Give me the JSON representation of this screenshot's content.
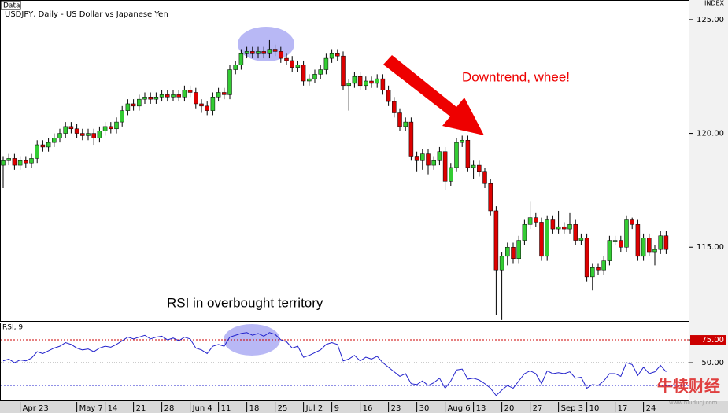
{
  "chart_data": [
    {
      "type": "candlestick",
      "title": "USDJPY, Daily - US Dollar vs Japanese Yen",
      "source": "Data",
      "axis_title": "INDEX",
      "up_color": "#33cc33",
      "down_color": "#dd0000",
      "annotations": [
        "Downtrend, whee!",
        "RSI in overbought territory"
      ],
      "ylim": [
        111.76,
        125.86
      ],
      "yticks": [
        {
          "value": 125,
          "label": "125.00"
        },
        {
          "value": 120,
          "label": "120.00"
        },
        {
          "value": 115,
          "label": "115.00"
        }
      ],
      "categories": [
        null,
        null,
        null,
        "Apr 23",
        null,
        null,
        null,
        null,
        null,
        null,
        null,
        null,
        null,
        "May 7",
        null,
        null,
        null,
        null,
        "14",
        null,
        null,
        null,
        null,
        "21",
        null,
        null,
        null,
        null,
        "28",
        null,
        null,
        null,
        null,
        "Jun 4",
        null,
        null,
        null,
        null,
        "11",
        null,
        null,
        null,
        null,
        "18",
        null,
        null,
        null,
        null,
        "25",
        null,
        null,
        null,
        null,
        "Jul 2",
        null,
        null,
        null,
        null,
        "9",
        null,
        null,
        null,
        null,
        "16",
        null,
        null,
        null,
        null,
        "23",
        null,
        null,
        null,
        null,
        "30",
        null,
        null,
        null,
        null,
        "Aug 6",
        null,
        null,
        null,
        null,
        "13",
        null,
        null,
        null,
        null,
        "20",
        null,
        null,
        null,
        null,
        "27",
        null,
        null,
        null,
        null,
        "Sep 3",
        null,
        null,
        null,
        null,
        "10",
        null,
        null,
        null,
        null,
        "17",
        null,
        null,
        null,
        null,
        "24",
        null,
        null,
        null,
        null
      ],
      "open": [
        118.6,
        118.8,
        118.9,
        118.6,
        118.8,
        118.7,
        118.9,
        119.5,
        119.4,
        119.6,
        119.8,
        120.0,
        120.3,
        120.2,
        120.0,
        119.9,
        120.0,
        119.8,
        120.1,
        120.3,
        120.2,
        120.5,
        121.0,
        121.3,
        121.2,
        121.5,
        121.6,
        121.5,
        121.6,
        121.7,
        121.6,
        121.7,
        121.6,
        121.9,
        121.8,
        121.3,
        121.2,
        121.0,
        121.6,
        121.8,
        121.7,
        122.8,
        123.0,
        123.5,
        123.6,
        123.5,
        123.6,
        123.5,
        123.7,
        123.6,
        123.3,
        123.2,
        122.9,
        123.0,
        122.3,
        122.4,
        122.6,
        122.8,
        123.3,
        123.5,
        123.4,
        122.1,
        122.2,
        122.5,
        122.1,
        122.3,
        122.2,
        122.4,
        121.9,
        121.4,
        120.9,
        120.3,
        120.5,
        119.0,
        118.8,
        119.1,
        118.6,
        118.8,
        119.2,
        117.9,
        118.5,
        119.6,
        119.7,
        118.5,
        118.6,
        118.3,
        117.8,
        116.6,
        114.0,
        114.6,
        115.0,
        114.5,
        115.3,
        116.0,
        116.3,
        116.1,
        114.6,
        116.2,
        115.8,
        115.9,
        115.8,
        116.0,
        115.3,
        115.4,
        113.7,
        114.1,
        114.0,
        114.4,
        115.3,
        115.3,
        115.0,
        116.2,
        116.0,
        114.6,
        115.4,
        114.8,
        114.9,
        115.5
      ],
      "high": [
        119.0,
        119.1,
        119.1,
        119.0,
        119.0,
        119.1,
        119.7,
        119.7,
        119.8,
        120.0,
        120.2,
        120.5,
        120.5,
        120.4,
        120.2,
        120.2,
        120.2,
        120.3,
        120.5,
        120.5,
        120.7,
        121.2,
        121.5,
        121.5,
        121.7,
        121.8,
        121.8,
        121.8,
        121.9,
        121.9,
        121.9,
        121.9,
        122.1,
        122.1,
        122.0,
        121.5,
        121.4,
        121.8,
        122.0,
        122.0,
        123.0,
        123.2,
        123.7,
        123.8,
        123.8,
        123.8,
        123.8,
        124.1,
        123.9,
        123.8,
        123.5,
        123.4,
        123.2,
        123.2,
        122.6,
        122.8,
        123.0,
        123.5,
        123.7,
        123.7,
        123.6,
        122.4,
        122.7,
        122.7,
        122.5,
        122.5,
        122.6,
        122.6,
        122.1,
        121.6,
        121.1,
        120.7,
        120.7,
        119.2,
        119.3,
        119.3,
        119.0,
        119.4,
        119.4,
        118.7,
        119.8,
        119.9,
        119.9,
        118.8,
        118.8,
        118.5,
        118.0,
        116.8,
        114.8,
        115.2,
        115.2,
        115.5,
        116.2,
        117.0,
        116.5,
        116.3,
        116.4,
        116.4,
        116.6,
        116.1,
        116.5,
        116.2,
        115.6,
        115.6,
        114.3,
        114.3,
        114.6,
        115.5,
        115.5,
        115.5,
        116.4,
        116.3,
        116.2,
        115.6,
        115.6,
        115.1,
        115.7,
        115.7
      ],
      "low": [
        117.6,
        118.6,
        118.4,
        118.4,
        118.5,
        118.5,
        118.7,
        119.2,
        119.2,
        119.4,
        119.6,
        119.8,
        120.0,
        119.8,
        119.7,
        119.7,
        119.5,
        119.6,
        119.9,
        120.0,
        120.0,
        120.3,
        120.8,
        121.0,
        121.0,
        121.3,
        121.3,
        121.3,
        121.4,
        121.4,
        121.4,
        121.4,
        121.4,
        121.6,
        121.1,
        120.9,
        120.8,
        120.8,
        121.4,
        121.5,
        121.5,
        122.6,
        122.8,
        123.3,
        123.3,
        123.3,
        123.3,
        123.3,
        123.4,
        123.1,
        123.0,
        122.7,
        122.7,
        122.1,
        122.1,
        122.2,
        122.4,
        122.6,
        123.1,
        123.2,
        121.9,
        121.0,
        122.0,
        121.9,
        121.9,
        122.0,
        122.0,
        121.7,
        121.2,
        120.7,
        120.1,
        120.1,
        118.8,
        118.3,
        118.4,
        118.2,
        118.4,
        118.6,
        117.5,
        117.7,
        118.3,
        119.4,
        118.3,
        118.0,
        118.1,
        117.6,
        116.4,
        112.0,
        111.8,
        114.2,
        114.3,
        114.3,
        115.1,
        115.8,
        115.9,
        114.4,
        114.4,
        115.6,
        115.6,
        115.6,
        115.6,
        115.1,
        115.1,
        113.5,
        113.1,
        113.8,
        113.8,
        114.2,
        115.1,
        114.8,
        114.8,
        115.8,
        114.4,
        114.4,
        114.6,
        114.2,
        114.7,
        114.7
      ],
      "close": [
        118.8,
        118.9,
        118.6,
        118.8,
        118.7,
        118.9,
        119.5,
        119.4,
        119.6,
        119.8,
        120.0,
        120.3,
        120.2,
        120.0,
        119.9,
        120.0,
        119.8,
        120.1,
        120.3,
        120.2,
        120.5,
        121.0,
        121.3,
        121.2,
        121.5,
        121.6,
        121.5,
        121.6,
        121.7,
        121.6,
        121.7,
        121.6,
        121.9,
        121.8,
        121.3,
        121.2,
        121.0,
        121.6,
        121.8,
        121.7,
        122.8,
        123.0,
        123.5,
        123.6,
        123.5,
        123.6,
        123.5,
        123.7,
        123.6,
        123.3,
        123.2,
        122.9,
        123.0,
        122.3,
        122.4,
        122.6,
        122.8,
        123.3,
        123.5,
        123.4,
        122.1,
        122.2,
        122.5,
        122.1,
        122.3,
        122.2,
        122.4,
        121.9,
        121.4,
        120.9,
        120.3,
        120.5,
        119.0,
        118.8,
        119.1,
        118.6,
        118.8,
        119.2,
        117.9,
        118.5,
        119.6,
        119.7,
        118.5,
        118.6,
        118.3,
        117.8,
        116.6,
        114.0,
        114.6,
        115.0,
        114.5,
        115.3,
        116.0,
        116.3,
        116.1,
        114.6,
        116.2,
        115.8,
        115.9,
        115.8,
        116.0,
        115.3,
        115.4,
        113.7,
        114.1,
        114.0,
        114.4,
        115.3,
        115.3,
        115.0,
        116.2,
        116.0,
        114.6,
        115.4,
        114.8,
        114.9,
        115.5,
        114.9
      ]
    },
    {
      "type": "line",
      "title": "RSI, 9",
      "color": "#2222cc",
      "ylim": [
        7.8,
        94
      ],
      "yticks": [
        {
          "value": 75,
          "label": "75.00"
        },
        {
          "value": 50,
          "label": "50.00"
        }
      ],
      "levels": [
        {
          "value": 75,
          "color": "#cc0000"
        },
        {
          "value": 25,
          "color": "#2222cc"
        }
      ],
      "values": [
        52,
        54,
        50,
        53,
        52,
        55,
        62,
        60,
        63,
        66,
        68,
        72,
        70,
        66,
        64,
        65,
        62,
        66,
        68,
        67,
        70,
        74,
        78,
        76,
        78,
        80,
        76,
        78,
        79,
        75,
        77,
        74,
        78,
        76,
        66,
        64,
        60,
        68,
        70,
        68,
        78,
        80,
        82,
        83,
        80,
        82,
        79,
        83,
        81,
        75,
        73,
        66,
        68,
        56,
        58,
        61,
        64,
        70,
        72,
        70,
        52,
        54,
        58,
        52,
        56,
        54,
        57,
        50,
        45,
        40,
        35,
        38,
        27,
        26,
        30,
        25,
        28,
        33,
        22,
        30,
        42,
        43,
        32,
        33,
        31,
        27,
        22,
        14,
        20,
        25,
        22,
        30,
        38,
        41,
        38,
        27,
        41,
        38,
        39,
        38,
        40,
        33,
        34,
        22,
        26,
        25,
        30,
        38,
        38,
        35,
        50,
        48,
        36,
        45,
        38,
        40,
        47,
        40
      ]
    }
  ],
  "watermark": {
    "brand": "牛犊财经",
    "url": "www.niuducj.com"
  }
}
